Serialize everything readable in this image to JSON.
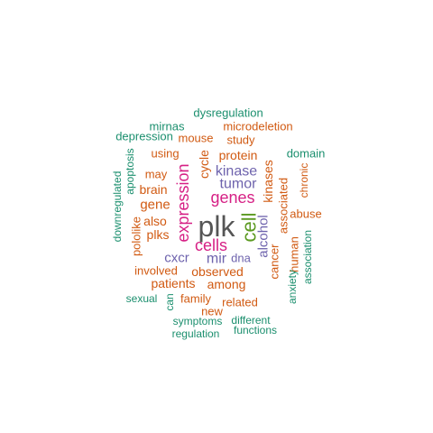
{
  "colors": {
    "gray": "#555555",
    "magenta": "#d62085",
    "purple": "#6e63ad",
    "green": "#5c9a22",
    "orange": "#d15a12",
    "teal": "#1b8f6e"
  },
  "words": [
    {
      "text": "plk",
      "group": "gray"
    },
    {
      "text": "cell",
      "group": "green"
    },
    {
      "text": "genes",
      "group": "magenta"
    },
    {
      "text": "expression",
      "group": "magenta"
    },
    {
      "text": "cells",
      "group": "magenta"
    },
    {
      "text": "kinase",
      "group": "purple"
    },
    {
      "text": "tumor",
      "group": "purple"
    },
    {
      "text": "mir",
      "group": "purple"
    },
    {
      "text": "cxcr",
      "group": "purple"
    },
    {
      "text": "alcohol",
      "group": "purple"
    },
    {
      "text": "dna",
      "group": "purple"
    },
    {
      "text": "cycle",
      "group": "orange"
    },
    {
      "text": "protein",
      "group": "orange"
    },
    {
      "text": "kinases",
      "group": "orange"
    },
    {
      "text": "observed",
      "group": "orange"
    },
    {
      "text": "patients",
      "group": "orange"
    },
    {
      "text": "among",
      "group": "orange"
    },
    {
      "text": "gene",
      "group": "orange"
    },
    {
      "text": "also",
      "group": "orange"
    },
    {
      "text": "plks",
      "group": "orange"
    },
    {
      "text": "brain",
      "group": "orange"
    },
    {
      "text": "may",
      "group": "orange"
    },
    {
      "text": "using",
      "group": "orange"
    },
    {
      "text": "mouse",
      "group": "orange"
    },
    {
      "text": "study",
      "group": "orange"
    },
    {
      "text": "microdeletion",
      "group": "orange"
    },
    {
      "text": "involved",
      "group": "orange"
    },
    {
      "text": "family",
      "group": "orange"
    },
    {
      "text": "related",
      "group": "orange"
    },
    {
      "text": "new",
      "group": "orange"
    },
    {
      "text": "pololike",
      "group": "orange"
    },
    {
      "text": "associated",
      "group": "orange"
    },
    {
      "text": "cancer",
      "group": "orange"
    },
    {
      "text": "human",
      "group": "orange"
    },
    {
      "text": "chronic",
      "group": "orange"
    },
    {
      "text": "abuse",
      "group": "orange"
    },
    {
      "text": "dysregulation",
      "group": "teal"
    },
    {
      "text": "mirnas",
      "group": "teal"
    },
    {
      "text": "depression",
      "group": "teal"
    },
    {
      "text": "domain",
      "group": "teal"
    },
    {
      "text": "apoptosis",
      "group": "teal"
    },
    {
      "text": "downregulated",
      "group": "teal"
    },
    {
      "text": "anxiety",
      "group": "teal"
    },
    {
      "text": "association",
      "group": "teal"
    },
    {
      "text": "sexual",
      "group": "teal"
    },
    {
      "text": "can",
      "group": "teal"
    },
    {
      "text": "symptoms",
      "group": "teal"
    },
    {
      "text": "different",
      "group": "teal"
    },
    {
      "text": "functions",
      "group": "teal"
    },
    {
      "text": "regulation",
      "group": "teal"
    }
  ]
}
